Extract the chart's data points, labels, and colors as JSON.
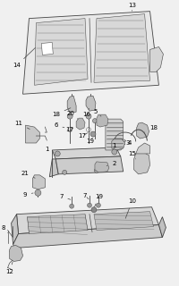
{
  "bg_color": "#f0f0f0",
  "fig_width": 2.0,
  "fig_height": 3.2,
  "dpi": 100,
  "lc": "#444444",
  "lw": 0.6,
  "fs": 5.0
}
